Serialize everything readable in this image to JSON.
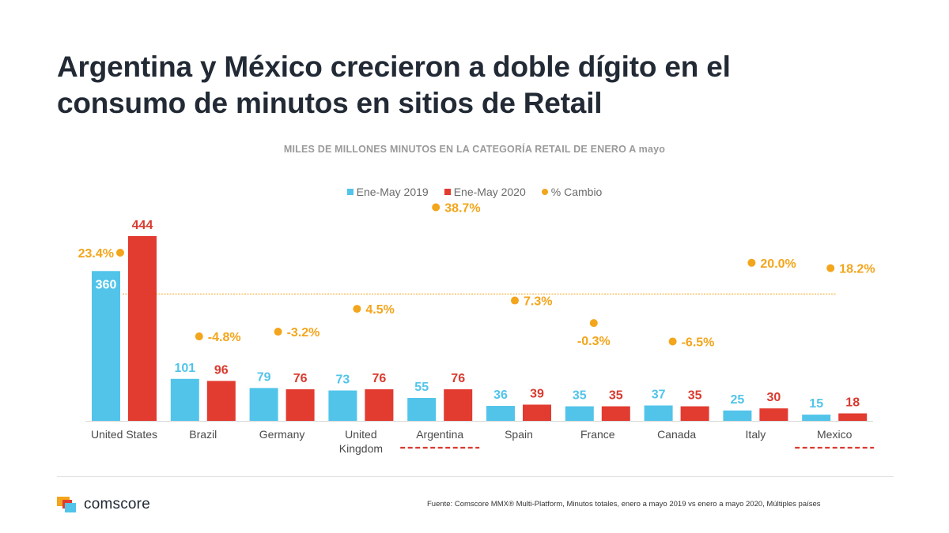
{
  "title_lines": [
    "Argentina y México crecieron a doble dígito en el",
    "consumo de minutos en sitios de Retail"
  ],
  "subtitle": "MILES DE MILLONES MINUTOS EN LA CATEGORÍA RETAIL DE ENERO A mayo",
  "legend": [
    {
      "label": "Ene-May 2019",
      "color": "#52c4ea",
      "shape": "square"
    },
    {
      "label": "Ene-May 2020",
      "color": "#e23b30",
      "shape": "square"
    },
    {
      "label": "% Cambio",
      "color": "#f3a51b",
      "shape": "circle"
    }
  ],
  "chart_data": {
    "type": "bar",
    "categories": [
      [
        "United States"
      ],
      [
        "Brazil"
      ],
      [
        "Germany"
      ],
      [
        "United",
        "Kingdom"
      ],
      [
        "Argentina"
      ],
      [
        "Spain"
      ],
      [
        "France"
      ],
      [
        "Canada"
      ],
      [
        "Italy"
      ],
      [
        "Mexico"
      ]
    ],
    "series": [
      {
        "name": "Ene-May 2019",
        "values": [
          360,
          101,
          79,
          73,
          55,
          36,
          35,
          37,
          25,
          15
        ],
        "color": "#52c4ea",
        "label_color": "#52c4ea"
      },
      {
        "name": "Ene-May 2020",
        "values": [
          444,
          96,
          76,
          76,
          76,
          39,
          35,
          35,
          30,
          18
        ],
        "color": "#e23b30",
        "label_color": "#d93a2f"
      }
    ],
    "pct_change": {
      "name": "% Cambio",
      "values": [
        23.4,
        -4.8,
        -3.2,
        4.5,
        38.7,
        7.3,
        -0.3,
        -6.5,
        20.0,
        18.2
      ],
      "labels": [
        "23.4%",
        "-4.8%",
        "-3.2%",
        "4.5%",
        "38.7%",
        "7.3%",
        "-0.3%",
        "-6.5%",
        "20.0%",
        "18.2%"
      ],
      "color": "#f3a51b",
      "average_line": 9.5
    },
    "highlighted_categories": [
      "Argentina",
      "Mexico"
    ],
    "ylim": [
      0,
      444
    ]
  },
  "footer": {
    "logo_text": "comscore",
    "source": "Fuente: Comscore MMX® Multi-Platform, Minutos totales, enero a mayo 2019 vs enero a mayo 2020, Múltiples países"
  }
}
